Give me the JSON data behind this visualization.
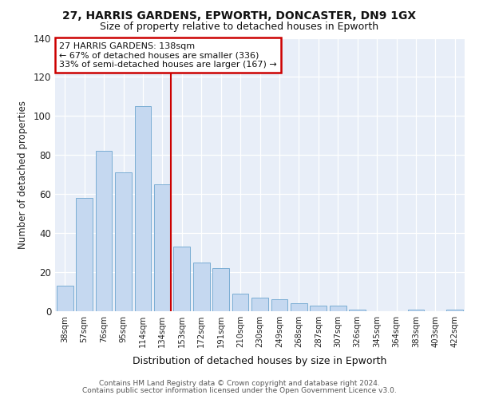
{
  "title1": "27, HARRIS GARDENS, EPWORTH, DONCASTER, DN9 1GX",
  "title2": "Size of property relative to detached houses in Epworth",
  "xlabel": "Distribution of detached houses by size in Epworth",
  "ylabel": "Number of detached properties",
  "categories": [
    "38sqm",
    "57sqm",
    "76sqm",
    "95sqm",
    "114sqm",
    "134sqm",
    "153sqm",
    "172sqm",
    "191sqm",
    "210sqm",
    "230sqm",
    "249sqm",
    "268sqm",
    "287sqm",
    "307sqm",
    "326sqm",
    "345sqm",
    "364sqm",
    "383sqm",
    "403sqm",
    "422sqm"
  ],
  "values": [
    13,
    58,
    82,
    71,
    105,
    65,
    33,
    25,
    22,
    9,
    7,
    6,
    4,
    3,
    3,
    1,
    0,
    0,
    1,
    0,
    1
  ],
  "bar_color": "#c5d8f0",
  "bar_edge_color": "#7aadd4",
  "vline_index": 5,
  "vline_color": "#cc0000",
  "annotation_text": "27 HARRIS GARDENS: 138sqm\n← 67% of detached houses are smaller (336)\n33% of semi-detached houses are larger (167) →",
  "annotation_box_facecolor": "#ffffff",
  "annotation_box_edgecolor": "#cc0000",
  "footer1": "Contains HM Land Registry data © Crown copyright and database right 2024.",
  "footer2": "Contains public sector information licensed under the Open Government Licence v3.0.",
  "bg_color": "#e8eef8",
  "ylim": [
    0,
    140
  ],
  "yticks": [
    0,
    20,
    40,
    60,
    80,
    100,
    120,
    140
  ]
}
